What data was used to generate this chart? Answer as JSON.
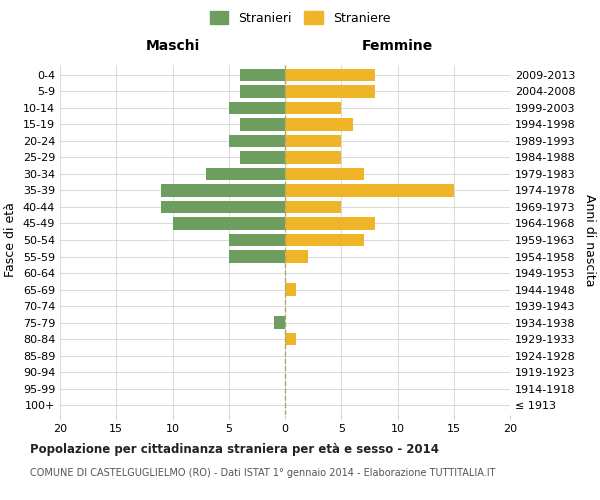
{
  "age_groups": [
    "100+",
    "95-99",
    "90-94",
    "85-89",
    "80-84",
    "75-79",
    "70-74",
    "65-69",
    "60-64",
    "55-59",
    "50-54",
    "45-49",
    "40-44",
    "35-39",
    "30-34",
    "25-29",
    "20-24",
    "15-19",
    "10-14",
    "5-9",
    "0-4"
  ],
  "birth_years": [
    "≤ 1913",
    "1914-1918",
    "1919-1923",
    "1924-1928",
    "1929-1933",
    "1934-1938",
    "1939-1943",
    "1944-1948",
    "1949-1953",
    "1954-1958",
    "1959-1963",
    "1964-1968",
    "1969-1973",
    "1974-1978",
    "1979-1983",
    "1984-1988",
    "1989-1993",
    "1994-1998",
    "1999-2003",
    "2004-2008",
    "2009-2013"
  ],
  "maschi": [
    0,
    0,
    0,
    0,
    0,
    1,
    0,
    0,
    0,
    5,
    5,
    10,
    11,
    11,
    7,
    4,
    5,
    4,
    5,
    4,
    4
  ],
  "femmine": [
    0,
    0,
    0,
    0,
    1,
    0,
    0,
    1,
    0,
    2,
    7,
    8,
    5,
    15,
    7,
    5,
    5,
    6,
    5,
    8,
    8
  ],
  "maschi_color": "#6e9e5f",
  "femmine_color": "#f0b429",
  "xlim": 20,
  "title": "Popolazione per cittadinanza straniera per età e sesso - 2014",
  "subtitle": "COMUNE DI CASTELGUGLIELMO (RO) - Dati ISTAT 1° gennaio 2014 - Elaborazione TUTTITALIA.IT",
  "ylabel_left": "Fasce di età",
  "ylabel_right": "Anni di nascita",
  "header_left": "Maschi",
  "header_right": "Femmine",
  "legend_maschi": "Stranieri",
  "legend_femmine": "Straniere",
  "background_color": "#ffffff",
  "grid_color": "#cccccc"
}
